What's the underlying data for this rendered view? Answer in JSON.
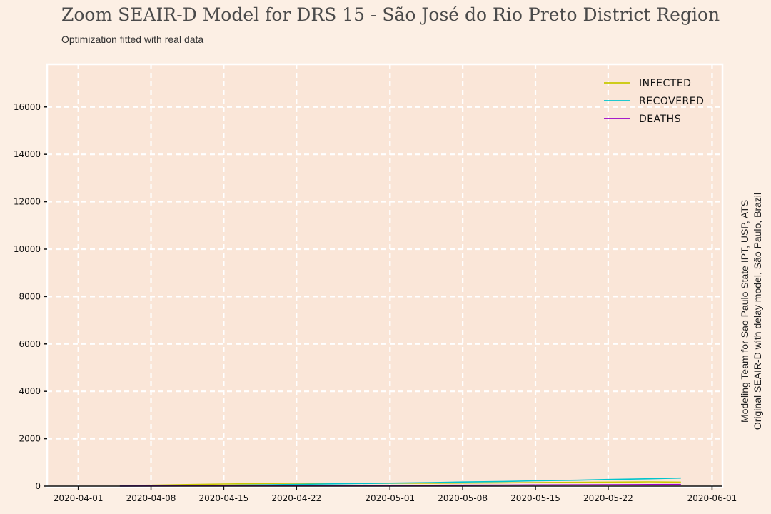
{
  "title": "Zoom SEAIR-D Model for DRS 15 - São José do Rio Preto District Region",
  "subtitle": "Optimization fitted with real data",
  "credit": {
    "line1": "Modeling Team for Sao Paulo State IPT, USP, ATS",
    "line2": "Original SEAIR-D with delay model, São Paulo, Brazil"
  },
  "colors": {
    "background": "#fcefe4",
    "plot_background": "#fae6d8",
    "infected": "#c8c800",
    "recovered": "#00c4cc",
    "deaths": "#9b00c8"
  },
  "chart_data": {
    "type": "line",
    "title": "Zoom SEAIR-D Model for DRS 15 - São José do Rio Preto District Region",
    "subtitle": "Optimization fitted with real data",
    "xlabel": "",
    "ylabel": "",
    "xlim": [
      "2020-03-29",
      "2020-06-02"
    ],
    "ylim": [
      0,
      17800
    ],
    "grid": true,
    "legend_position": "top-right",
    "x_ticks": [
      "2020-04-01",
      "2020-04-08",
      "2020-04-15",
      "2020-04-22",
      "2020-05-01",
      "2020-05-08",
      "2020-05-15",
      "2020-05-22",
      "2020-06-01"
    ],
    "y_ticks": [
      0,
      2000,
      4000,
      6000,
      8000,
      10000,
      12000,
      14000,
      16000
    ],
    "y_tick_labels": [
      "0",
      "2000",
      "4000",
      "6000",
      "8000",
      "10000",
      "12000",
      "14000",
      "16000"
    ],
    "x": [
      "2020-04-05",
      "2020-04-08",
      "2020-04-12",
      "2020-04-15",
      "2020-04-19",
      "2020-04-22",
      "2020-04-26",
      "2020-05-01",
      "2020-05-05",
      "2020-05-08",
      "2020-05-12",
      "2020-05-15",
      "2020-05-19",
      "2020-05-22",
      "2020-05-26",
      "2020-05-29"
    ],
    "series": [
      {
        "name": "INFECTED",
        "color": "#c8c800",
        "values": [
          20,
          40,
          70,
          90,
          110,
          120,
          120,
          120,
          120,
          130,
          140,
          150,
          160,
          170,
          180,
          170
        ]
      },
      {
        "name": "RECOVERED",
        "color": "#00c4cc",
        "values": [
          5,
          10,
          20,
          35,
          55,
          75,
          100,
          125,
          150,
          175,
          200,
          225,
          250,
          280,
          310,
          340
        ]
      },
      {
        "name": "DEATHS",
        "color": "#9b00c8",
        "values": [
          2,
          5,
          8,
          12,
          16,
          20,
          25,
          30,
          35,
          40,
          45,
          50,
          55,
          60,
          65,
          70
        ]
      }
    ]
  }
}
